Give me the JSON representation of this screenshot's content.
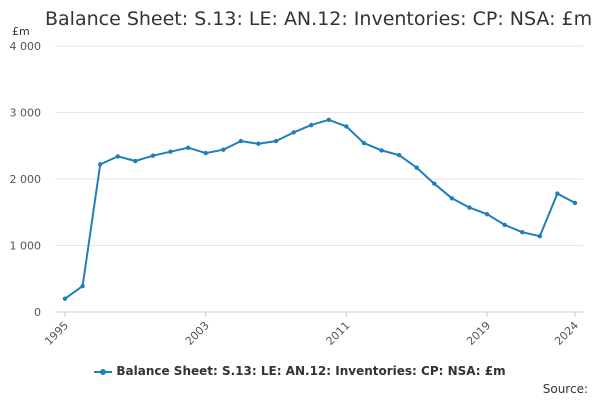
{
  "chart_data": {
    "type": "line",
    "title": "Balance Sheet: S.13: LE: AN.12: Inventories: CP: NSA: £m",
    "ylabel": "£m",
    "xlabel": "",
    "ylim": [
      0,
      4000
    ],
    "xlim": [
      1995,
      2024
    ],
    "y_ticks": [
      0,
      1000,
      2000,
      3000,
      4000
    ],
    "y_tick_labels": [
      "0",
      "1 000",
      "2 000",
      "3 000",
      "4 000"
    ],
    "x_ticks": [
      1995,
      2003,
      2011,
      2019,
      2024
    ],
    "x_tick_labels": [
      "1995",
      "2003",
      "2011",
      "2019",
      "2024"
    ],
    "grid": "horizontal",
    "legend_position": "bottom",
    "color": "#1f7fb8",
    "series": [
      {
        "name": "Balance Sheet: S.13: LE: AN.12: Inventories: CP: NSA: £m",
        "x": [
          1995,
          1996,
          1997,
          1998,
          1999,
          2000,
          2001,
          2002,
          2003,
          2004,
          2005,
          2006,
          2007,
          2008,
          2009,
          2010,
          2011,
          2012,
          2013,
          2014,
          2015,
          2016,
          2017,
          2018,
          2019,
          2020,
          2021,
          2022,
          2023,
          2024
        ],
        "values": [
          200,
          390,
          2220,
          2340,
          2270,
          2350,
          2410,
          2470,
          2390,
          2440,
          2570,
          2530,
          2570,
          2700,
          2810,
          2890,
          2790,
          2540,
          2430,
          2360,
          2170,
          1930,
          1710,
          1570,
          1470,
          1310,
          1200,
          1140,
          1780,
          1640
        ]
      }
    ]
  },
  "legend": {
    "label": "Balance Sheet: S.13: LE: AN.12: Inventories: CP: NSA: £m"
  },
  "source_label": "Source:"
}
